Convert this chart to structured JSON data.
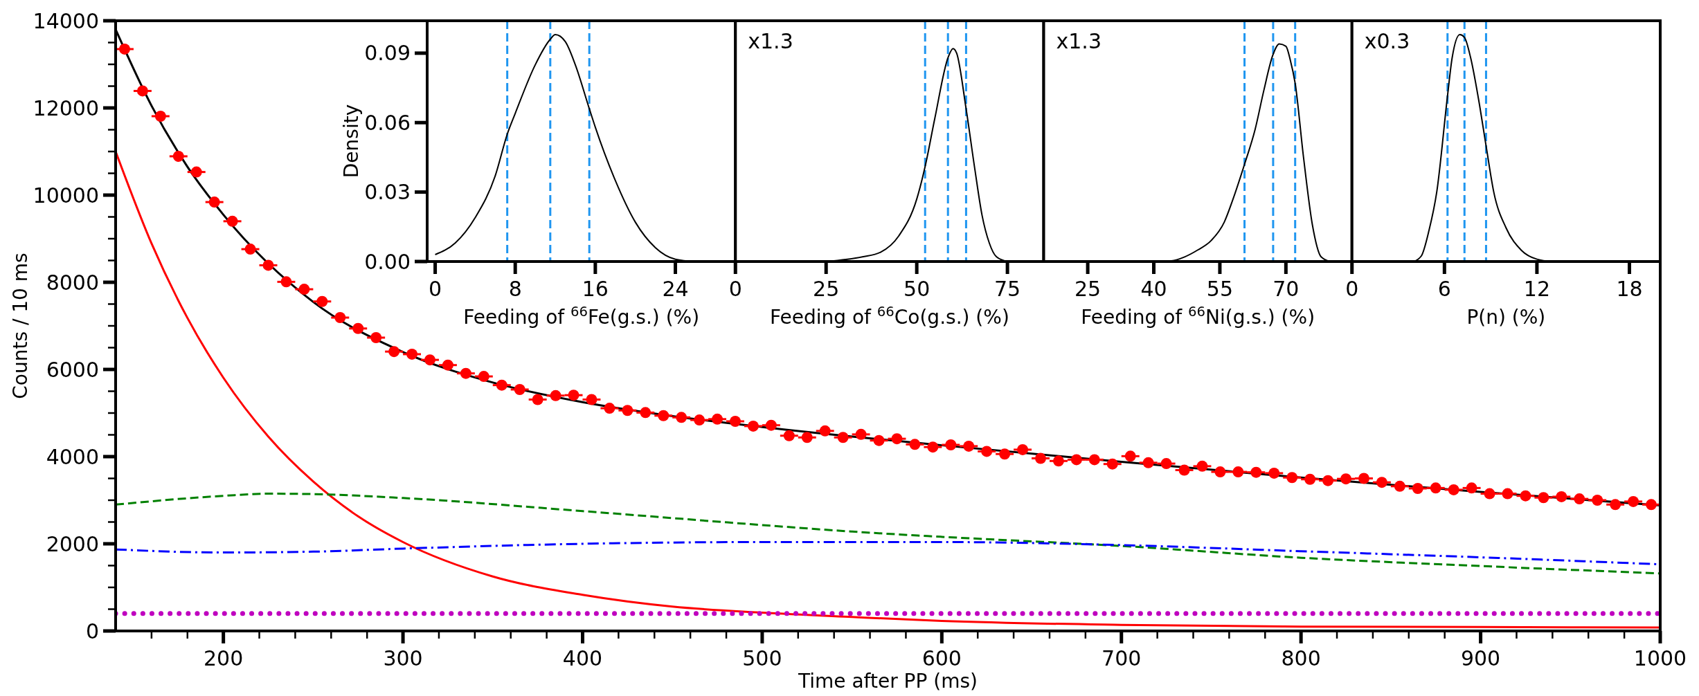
{
  "chart_data": [
    {
      "type": "scatter",
      "xlabel": "Time after PP (ms)",
      "ylabel": "Counts / 10 ms",
      "xlim": [
        140,
        1000
      ],
      "ylim": [
        0,
        14000
      ],
      "xticks": [
        {
          "value": 160,
          "label": null
        },
        {
          "value": 180,
          "label": null
        },
        200,
        {
          "value": 220,
          "label": null
        },
        {
          "value": 240,
          "label": null
        },
        {
          "value": 260,
          "label": null
        },
        {
          "value": 280,
          "label": null
        },
        300,
        {
          "value": 320,
          "label": null
        },
        {
          "value": 340,
          "label": null
        },
        {
          "value": 360,
          "label": null
        },
        {
          "value": 380,
          "label": null
        },
        400,
        {
          "value": 420,
          "label": null
        },
        {
          "value": 440,
          "label": null
        },
        {
          "value": 460,
          "label": null
        },
        {
          "value": 480,
          "label": null
        },
        500,
        {
          "value": 520,
          "label": null
        },
        {
          "value": 540,
          "label": null
        },
        {
          "value": 560,
          "label": null
        },
        {
          "value": 580,
          "label": null
        },
        600,
        {
          "value": 620,
          "label": null
        },
        {
          "value": 640,
          "label": null
        },
        {
          "value": 660,
          "label": null
        },
        {
          "value": 680,
          "label": null
        },
        700,
        {
          "value": 720,
          "label": null
        },
        {
          "value": 740,
          "label": null
        },
        {
          "value": 760,
          "label": null
        },
        {
          "value": 780,
          "label": null
        },
        800,
        {
          "value": 820,
          "label": null
        },
        {
          "value": 840,
          "label": null
        },
        {
          "value": 860,
          "label": null
        },
        {
          "value": 880,
          "label": null
        },
        900,
        {
          "value": 920,
          "label": null
        },
        {
          "value": 940,
          "label": null
        },
        {
          "value": 960,
          "label": null
        },
        {
          "value": 980,
          "label": null
        },
        1000
      ],
      "yticks": [
        0,
        {
          "value": 500,
          "label": null
        },
        {
          "value": 1000,
          "label": null
        },
        {
          "value": 1500,
          "label": null
        },
        2000,
        {
          "value": 2500,
          "label": null
        },
        {
          "value": 3000,
          "label": null
        },
        {
          "value": 3500,
          "label": null
        },
        4000,
        {
          "value": 4500,
          "label": null
        },
        {
          "value": 5000,
          "label": null
        },
        {
          "value": 5500,
          "label": null
        },
        6000,
        {
          "value": 6500,
          "label": null
        },
        {
          "value": 7000,
          "label": null
        },
        {
          "value": 7500,
          "label": null
        },
        8000,
        {
          "value": 8500,
          "label": null
        },
        {
          "value": 9000,
          "label": null
        },
        {
          "value": 9500,
          "label": null
        },
        10000,
        {
          "value": 10500,
          "label": null
        },
        {
          "value": 11000,
          "label": null
        },
        {
          "value": 11500,
          "label": null
        },
        12000,
        {
          "value": 12500,
          "label": null
        },
        {
          "value": 13000,
          "label": null
        },
        {
          "value": 13500,
          "label": null
        },
        14000
      ],
      "series": [
        {
          "type": "line",
          "color": "#ff0000",
          "line_style": "solid",
          "x": [
            140,
            160,
            180,
            200,
            225,
            250,
            275,
            300,
            350,
            400,
            450,
            500,
            550,
            600,
            700,
            800,
            900,
            1000
          ],
          "values": [
            11000,
            8890,
            7180,
            5810,
            4460,
            3430,
            2630,
            2040,
            1250,
            830,
            560,
            420,
            320,
            230,
            140,
            100,
            90,
            80
          ]
        },
        {
          "type": "line",
          "color": "#008000",
          "line_style": "dashed",
          "x": [
            140,
            200,
            225,
            250,
            300,
            400,
            500,
            550,
            600,
            700,
            800,
            900,
            1000
          ],
          "values": [
            2900,
            3100,
            3150,
            3140,
            3050,
            2750,
            2430,
            2280,
            2160,
            1950,
            1680,
            1490,
            1320
          ]
        },
        {
          "type": "line",
          "color": "#0000ff",
          "line_style": "dashdot",
          "x": [
            140,
            200,
            250,
            300,
            400,
            500,
            600,
            700,
            800,
            900,
            1000
          ],
          "values": [
            1870,
            1800,
            1820,
            1890,
            2000,
            2040,
            2040,
            1970,
            1830,
            1690,
            1530
          ]
        },
        {
          "type": "line",
          "color": "#bf00bf",
          "line_style": "dotted",
          "x": [
            140,
            1000
          ],
          "values": [
            400,
            400
          ]
        },
        {
          "type": "line",
          "color": "#000000",
          "line_style": "solid",
          "x": [
            140,
            160,
            180,
            200,
            250,
            300,
            350,
            400,
            450,
            500,
            600,
            700,
            800,
            900,
            1000
          ],
          "values": [
            13800,
            12050,
            10650,
            9550,
            7550,
            6400,
            5700,
            5250,
            4930,
            4680,
            4260,
            3880,
            3520,
            3190,
            2880
          ]
        },
        {
          "type": "scatter",
          "color": "#ff0000",
          "marker": "circle",
          "x": [
            145,
            155,
            165,
            175,
            185,
            195,
            205,
            215,
            225,
            235,
            245,
            255,
            265,
            275,
            285,
            295,
            305,
            315,
            325,
            335,
            345,
            355,
            365,
            375,
            385,
            395,
            405,
            415,
            425,
            435,
            445,
            455,
            465,
            475,
            485,
            495,
            505,
            515,
            525,
            535,
            545,
            555,
            565,
            575,
            585,
            595,
            605,
            615,
            625,
            635,
            645,
            655,
            665,
            675,
            685,
            695,
            705,
            715,
            725,
            735,
            745,
            755,
            765,
            775,
            785,
            795,
            805,
            815,
            825,
            835,
            845,
            855,
            865,
            875,
            885,
            895,
            905,
            915,
            925,
            935,
            945,
            955,
            965,
            975,
            985,
            995
          ],
          "values": [
            13350,
            12390,
            11810,
            10890,
            10530,
            9840,
            9400,
            8760,
            8390,
            8010,
            7840,
            7560,
            7190,
            6940,
            6730,
            6410,
            6350,
            6220,
            6100,
            5910,
            5840,
            5640,
            5540,
            5310,
            5400,
            5410,
            5310,
            5110,
            5060,
            5010,
            4940,
            4900,
            4840,
            4860,
            4810,
            4700,
            4720,
            4480,
            4440,
            4590,
            4440,
            4510,
            4370,
            4410,
            4280,
            4220,
            4270,
            4240,
            4120,
            4060,
            4160,
            3960,
            3900,
            3930,
            3930,
            3830,
            4010,
            3860,
            3840,
            3690,
            3780,
            3650,
            3650,
            3640,
            3620,
            3520,
            3480,
            3450,
            3490,
            3500,
            3410,
            3320,
            3270,
            3280,
            3240,
            3280,
            3150,
            3150,
            3100,
            3060,
            3080,
            3030,
            3000,
            2900,
            2970,
            2900
          ],
          "xerrors": [
            5,
            5,
            5,
            5,
            5,
            5,
            5,
            5,
            5,
            5,
            5,
            5,
            5,
            5,
            5,
            5,
            5,
            5,
            5,
            5,
            5,
            5,
            5,
            5,
            5,
            5,
            5,
            5,
            5,
            5,
            5,
            5,
            5,
            5,
            5,
            5,
            5,
            5,
            5,
            5,
            5,
            5,
            5,
            5,
            5,
            5,
            5,
            5,
            5,
            5,
            5,
            5,
            5,
            5,
            5,
            5,
            5,
            5,
            5,
            5,
            5,
            5,
            5,
            5,
            5,
            5,
            5,
            5,
            5,
            5,
            5,
            5,
            5,
            5,
            5,
            5,
            5,
            5,
            5,
            5,
            5,
            5,
            5,
            5,
            5,
            5
          ]
        }
      ]
    },
    {
      "type": "line",
      "xlabel": "Feeding of $^{66}$Fe(g.s.) (%)",
      "ylabel": "Density",
      "xlim": [
        -0.8,
        30
      ],
      "ylim": [
        0,
        0.104
      ],
      "xticks": [
        0,
        8,
        16,
        24
      ],
      "yticks": [
        {
          "value": 0,
          "label": "0.00"
        },
        {
          "value": 0.03,
          "label": "0.03"
        },
        {
          "value": 0.06,
          "label": "0.06"
        },
        {
          "value": 0.09,
          "label": "0.09"
        }
      ],
      "series": [
        {
          "color": "#000000",
          "x": [
            0,
            2,
            4,
            6,
            7.2,
            8,
            10,
            11.5,
            12,
            13,
            14,
            15.4,
            16,
            18,
            20,
            22,
            24,
            26
          ],
          "values": [
            0.003,
            0.008,
            0.019,
            0.037,
            0.055,
            0.064,
            0.085,
            0.096,
            0.098,
            0.095,
            0.085,
            0.066,
            0.058,
            0.035,
            0.017,
            0.006,
            0.001,
            0
          ]
        }
      ],
      "ref_lines": [
        {
          "axis": "x",
          "value": 7.2,
          "color": "#1f96f0",
          "line_style": "dashed"
        },
        {
          "axis": "x",
          "value": 11.5,
          "color": "#1f96f0",
          "line_style": "dashed"
        },
        {
          "axis": "x",
          "value": 15.4,
          "color": "#1f96f0",
          "line_style": "dashed"
        }
      ]
    },
    {
      "type": "line",
      "xlabel": "Feeding of $^{66}$Co(g.s.) (%)",
      "annotations": [
        "x1.3"
      ],
      "xlim": [
        0,
        85
      ],
      "ylim": [
        0,
        0.104
      ],
      "tick_labels": "x",
      "xticks": [
        0,
        25,
        50,
        75
      ],
      "series": [
        {
          "color": "#000000",
          "x": [
            25,
            35,
            40,
            45,
            50,
            52.3,
            55,
            58.6,
            60,
            61,
            63.6,
            66,
            68,
            70,
            72,
            75
          ],
          "values": [
            0,
            0.002,
            0.004,
            0.011,
            0.027,
            0.041,
            0.062,
            0.088,
            0.092,
            0.09,
            0.066,
            0.04,
            0.02,
            0.008,
            0.002,
            0
          ]
        }
      ],
      "ref_lines": [
        {
          "axis": "x",
          "value": 52.3,
          "color": "#1f96f0",
          "line_style": "dashed"
        },
        {
          "axis": "x",
          "value": 58.6,
          "color": "#1f96f0",
          "line_style": "dashed"
        },
        {
          "axis": "x",
          "value": 63.6,
          "color": "#1f96f0",
          "line_style": "dashed"
        }
      ]
    },
    {
      "type": "line",
      "xlabel": "Feeding of $^{66}$Ni(g.s.) (%)",
      "annotations": [
        "x1.3"
      ],
      "xlim": [
        15,
        85
      ],
      "ylim": [
        0,
        0.104
      ],
      "tick_labels": "x",
      "xticks": [
        25,
        40,
        55,
        70
      ],
      "series": [
        {
          "color": "#000000",
          "x": [
            40,
            44,
            47,
            50,
            53,
            56,
            58,
            60.6,
            63,
            65,
            67,
            68.5,
            70,
            71,
            72.1,
            74,
            76,
            78,
            80
          ],
          "values": [
            0,
            0.0003,
            0.002,
            0.005,
            0.009,
            0.017,
            0.027,
            0.042,
            0.057,
            0.074,
            0.089,
            0.094,
            0.093,
            0.087,
            0.077,
            0.045,
            0.016,
            0.002,
            0
          ]
        }
      ],
      "ref_lines": [
        {
          "axis": "x",
          "value": 60.6,
          "color": "#1f96f0",
          "line_style": "dashed"
        },
        {
          "axis": "x",
          "value": 67.1,
          "color": "#1f96f0",
          "line_style": "dashed"
        },
        {
          "axis": "x",
          "value": 72.1,
          "color": "#1f96f0",
          "line_style": "dashed"
        }
      ]
    },
    {
      "type": "line",
      "xlabel": "P(n) (%)",
      "annotations": [
        "x0.3"
      ],
      "xlim": [
        0,
        20
      ],
      "ylim": [
        0,
        0.104
      ],
      "tick_labels": "x",
      "xticks": [
        0,
        6,
        12,
        18
      ],
      "series": [
        {
          "color": "#000000",
          "x": [
            4,
            4.5,
            5,
            5.5,
            6.2,
            6.5,
            7,
            7.3,
            7.7,
            8.2,
            8.7,
            9.2,
            10,
            11,
            12,
            13
          ],
          "values": [
            0,
            0.0024,
            0.0135,
            0.03,
            0.0716,
            0.088,
            0.098,
            0.0968,
            0.088,
            0.0706,
            0.05,
            0.03,
            0.0145,
            0.0048,
            0.001,
            0
          ]
        }
      ],
      "ref_lines": [
        {
          "axis": "x",
          "value": 6.2,
          "color": "#1f96f0",
          "line_style": "dashed"
        },
        {
          "axis": "x",
          "value": 7.3,
          "color": "#1f96f0",
          "line_style": "dashed"
        },
        {
          "axis": "x",
          "value": 8.7,
          "color": "#1f96f0",
          "line_style": "dashed"
        }
      ]
    }
  ]
}
